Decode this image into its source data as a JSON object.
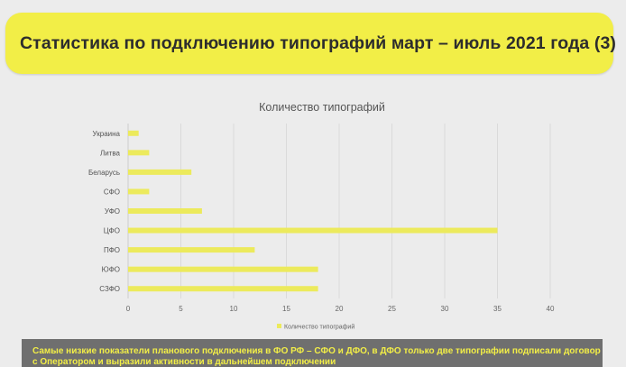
{
  "slide": {
    "title": "Статистика по подключению типографий март – июль 2021 года (3)",
    "footer_text": "Самые низкие показатели планового подключения в ФО РФ – СФО и ДФО, в ДФО только две типографии подписали договор с Оператором и выразили активности в дальнейшем подключении",
    "accent_color": "#f2ee47",
    "footer_bg": "#6f6f6f"
  },
  "chart_data": {
    "type": "bar",
    "orientation": "horizontal",
    "title": "Количество типографий",
    "categories": [
      "Украина",
      "Литва",
      "Беларусь",
      "СФО",
      "УФО",
      "ЦФО",
      "ПФО",
      "ЮФО",
      "СЗФО"
    ],
    "series": [
      {
        "name": "Количество типографий",
        "values": [
          1,
          2,
          6,
          2,
          7,
          35,
          12,
          18,
          18
        ],
        "color": "#ecea5c"
      }
    ],
    "xlim": [
      0,
      40
    ],
    "xticks": [
      0,
      5,
      10,
      15,
      20,
      25,
      30,
      35,
      40
    ],
    "grid": "vertical",
    "legend": "bottom"
  }
}
